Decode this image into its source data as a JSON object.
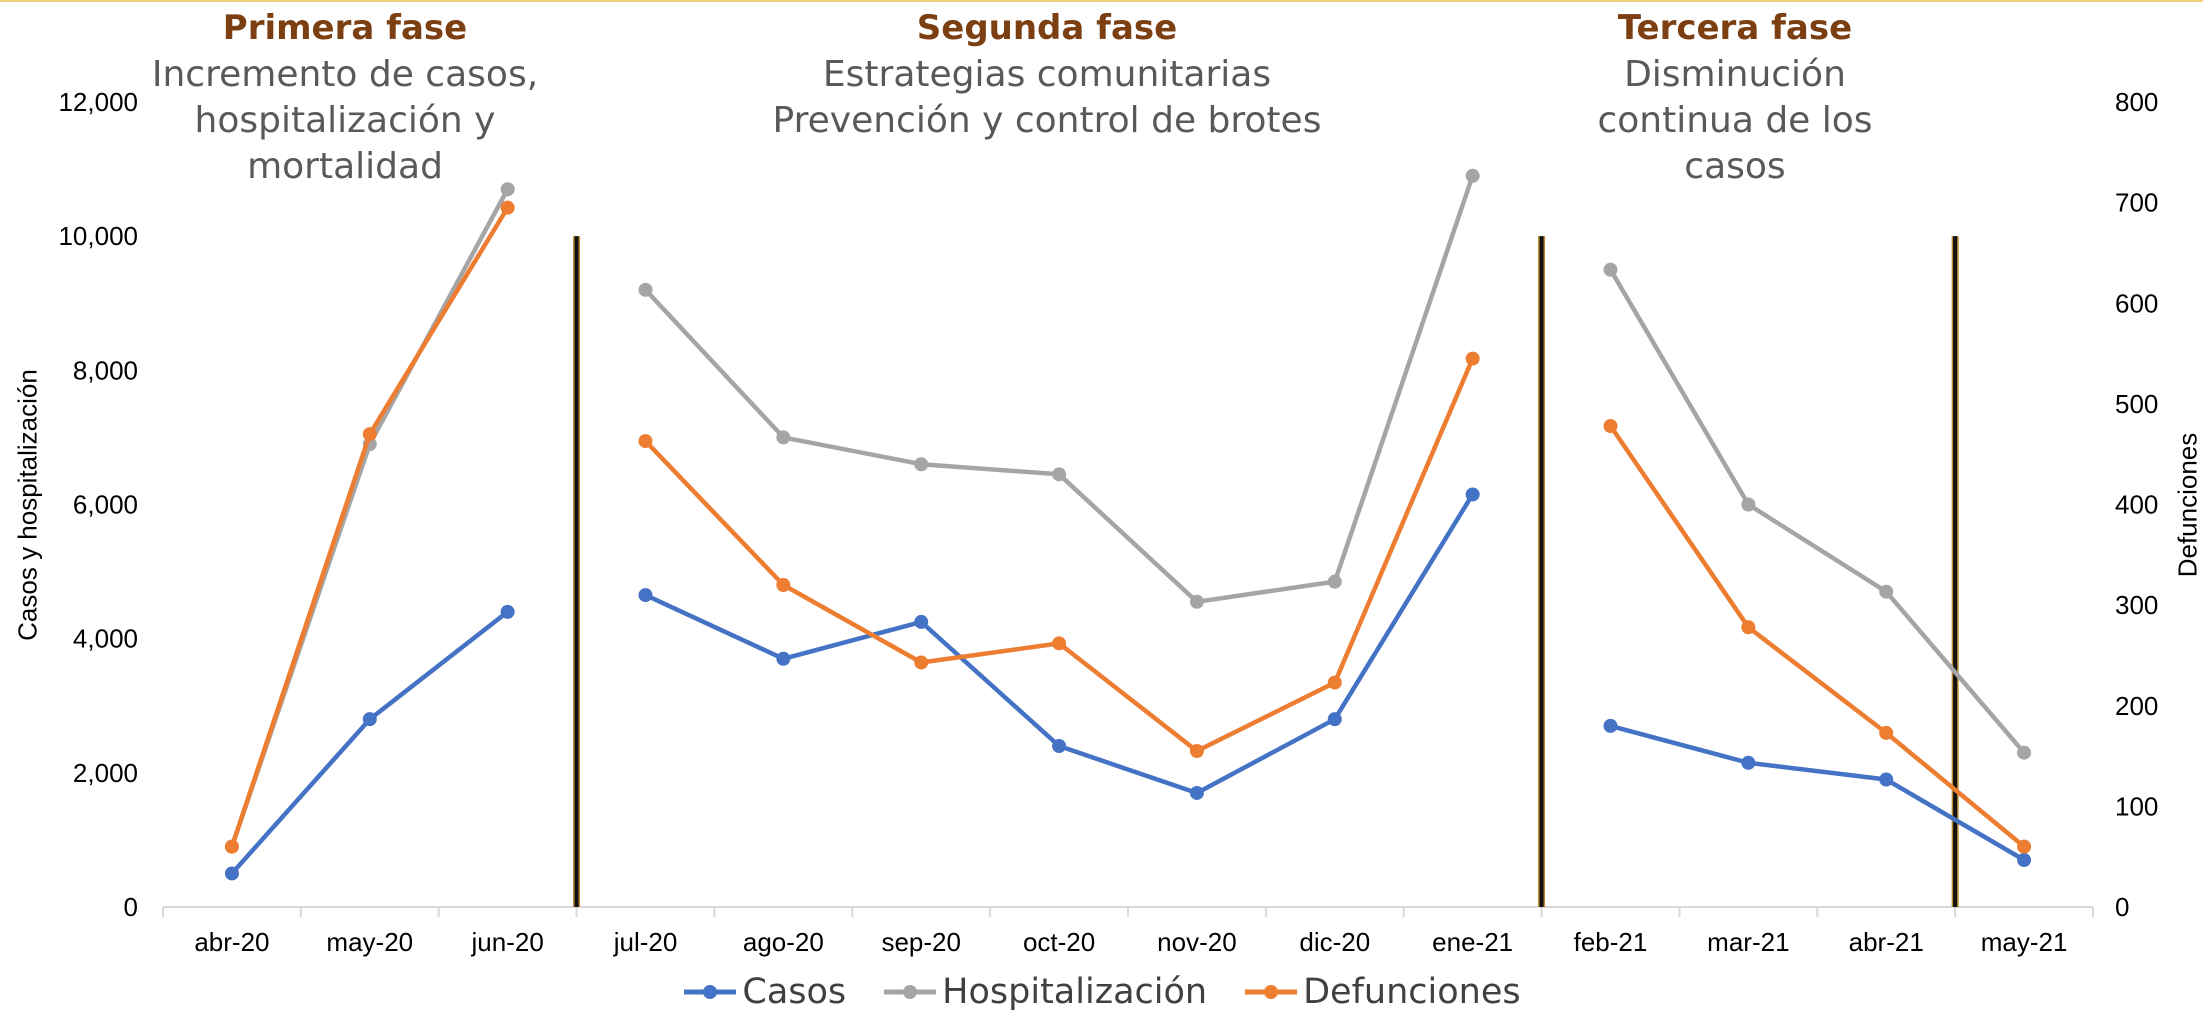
{
  "phases": [
    {
      "title": "Primera fase",
      "lines": [
        "Incremento de casos,",
        "hospitalización y",
        "mortalidad"
      ]
    },
    {
      "title": "Segunda fase",
      "lines": [
        "Estrategias comunitarias",
        "Prevención y control de brotes"
      ]
    },
    {
      "title": "Tercera fase",
      "lines": [
        "Disminución",
        "continua de los",
        "casos"
      ]
    }
  ],
  "chart_data": {
    "type": "line",
    "categories": [
      "abr-20",
      "may-20",
      "jun-20",
      "jul-20",
      "ago-20",
      "sep-20",
      "oct-20",
      "nov-20",
      "dic-20",
      "ene-21",
      "feb-21",
      "mar-21",
      "abr-21",
      "may-21"
    ],
    "ylabel": "Casos y hospitalización",
    "y2label": "Defunciones",
    "ylim": [
      0,
      12000
    ],
    "y2lim": [
      0,
      800
    ],
    "yticks": [
      "0",
      "2,000",
      "4,000",
      "6,000",
      "8,000",
      "10,000",
      "12,000"
    ],
    "y2ticks": [
      "0",
      "100",
      "200",
      "300",
      "400",
      "500",
      "600",
      "700",
      "800"
    ],
    "phase_breaks_after": [
      "jun-20",
      "ene-21",
      "abr-21"
    ],
    "legend_position": "bottom",
    "series": [
      {
        "name": "Casos",
        "axis": "left",
        "color": "#4472c4",
        "segments": [
          [
            0,
            2
          ],
          [
            3,
            9
          ],
          [
            10,
            13
          ]
        ],
        "values": [
          500,
          2800,
          4400,
          4650,
          3700,
          4250,
          2400,
          1700,
          2800,
          6150,
          2700,
          2150,
          1900,
          700
        ]
      },
      {
        "name": "Hospitalización",
        "axis": "left",
        "color": "#a5a5a5",
        "segments": [
          [
            0,
            2
          ],
          [
            3,
            9
          ],
          [
            10,
            13
          ]
        ],
        "values": [
          900,
          6900,
          10700,
          9200,
          7000,
          6600,
          6450,
          4550,
          4850,
          10900,
          9500,
          6000,
          4700,
          2300
        ]
      },
      {
        "name": "Defunciones",
        "axis": "right",
        "color": "#ed7d31",
        "segments": [
          [
            0,
            2
          ],
          [
            3,
            9
          ],
          [
            10,
            13
          ]
        ],
        "values": [
          60,
          470,
          695,
          463,
          320,
          243,
          262,
          155,
          223,
          545,
          478,
          278,
          173,
          60
        ]
      }
    ]
  }
}
